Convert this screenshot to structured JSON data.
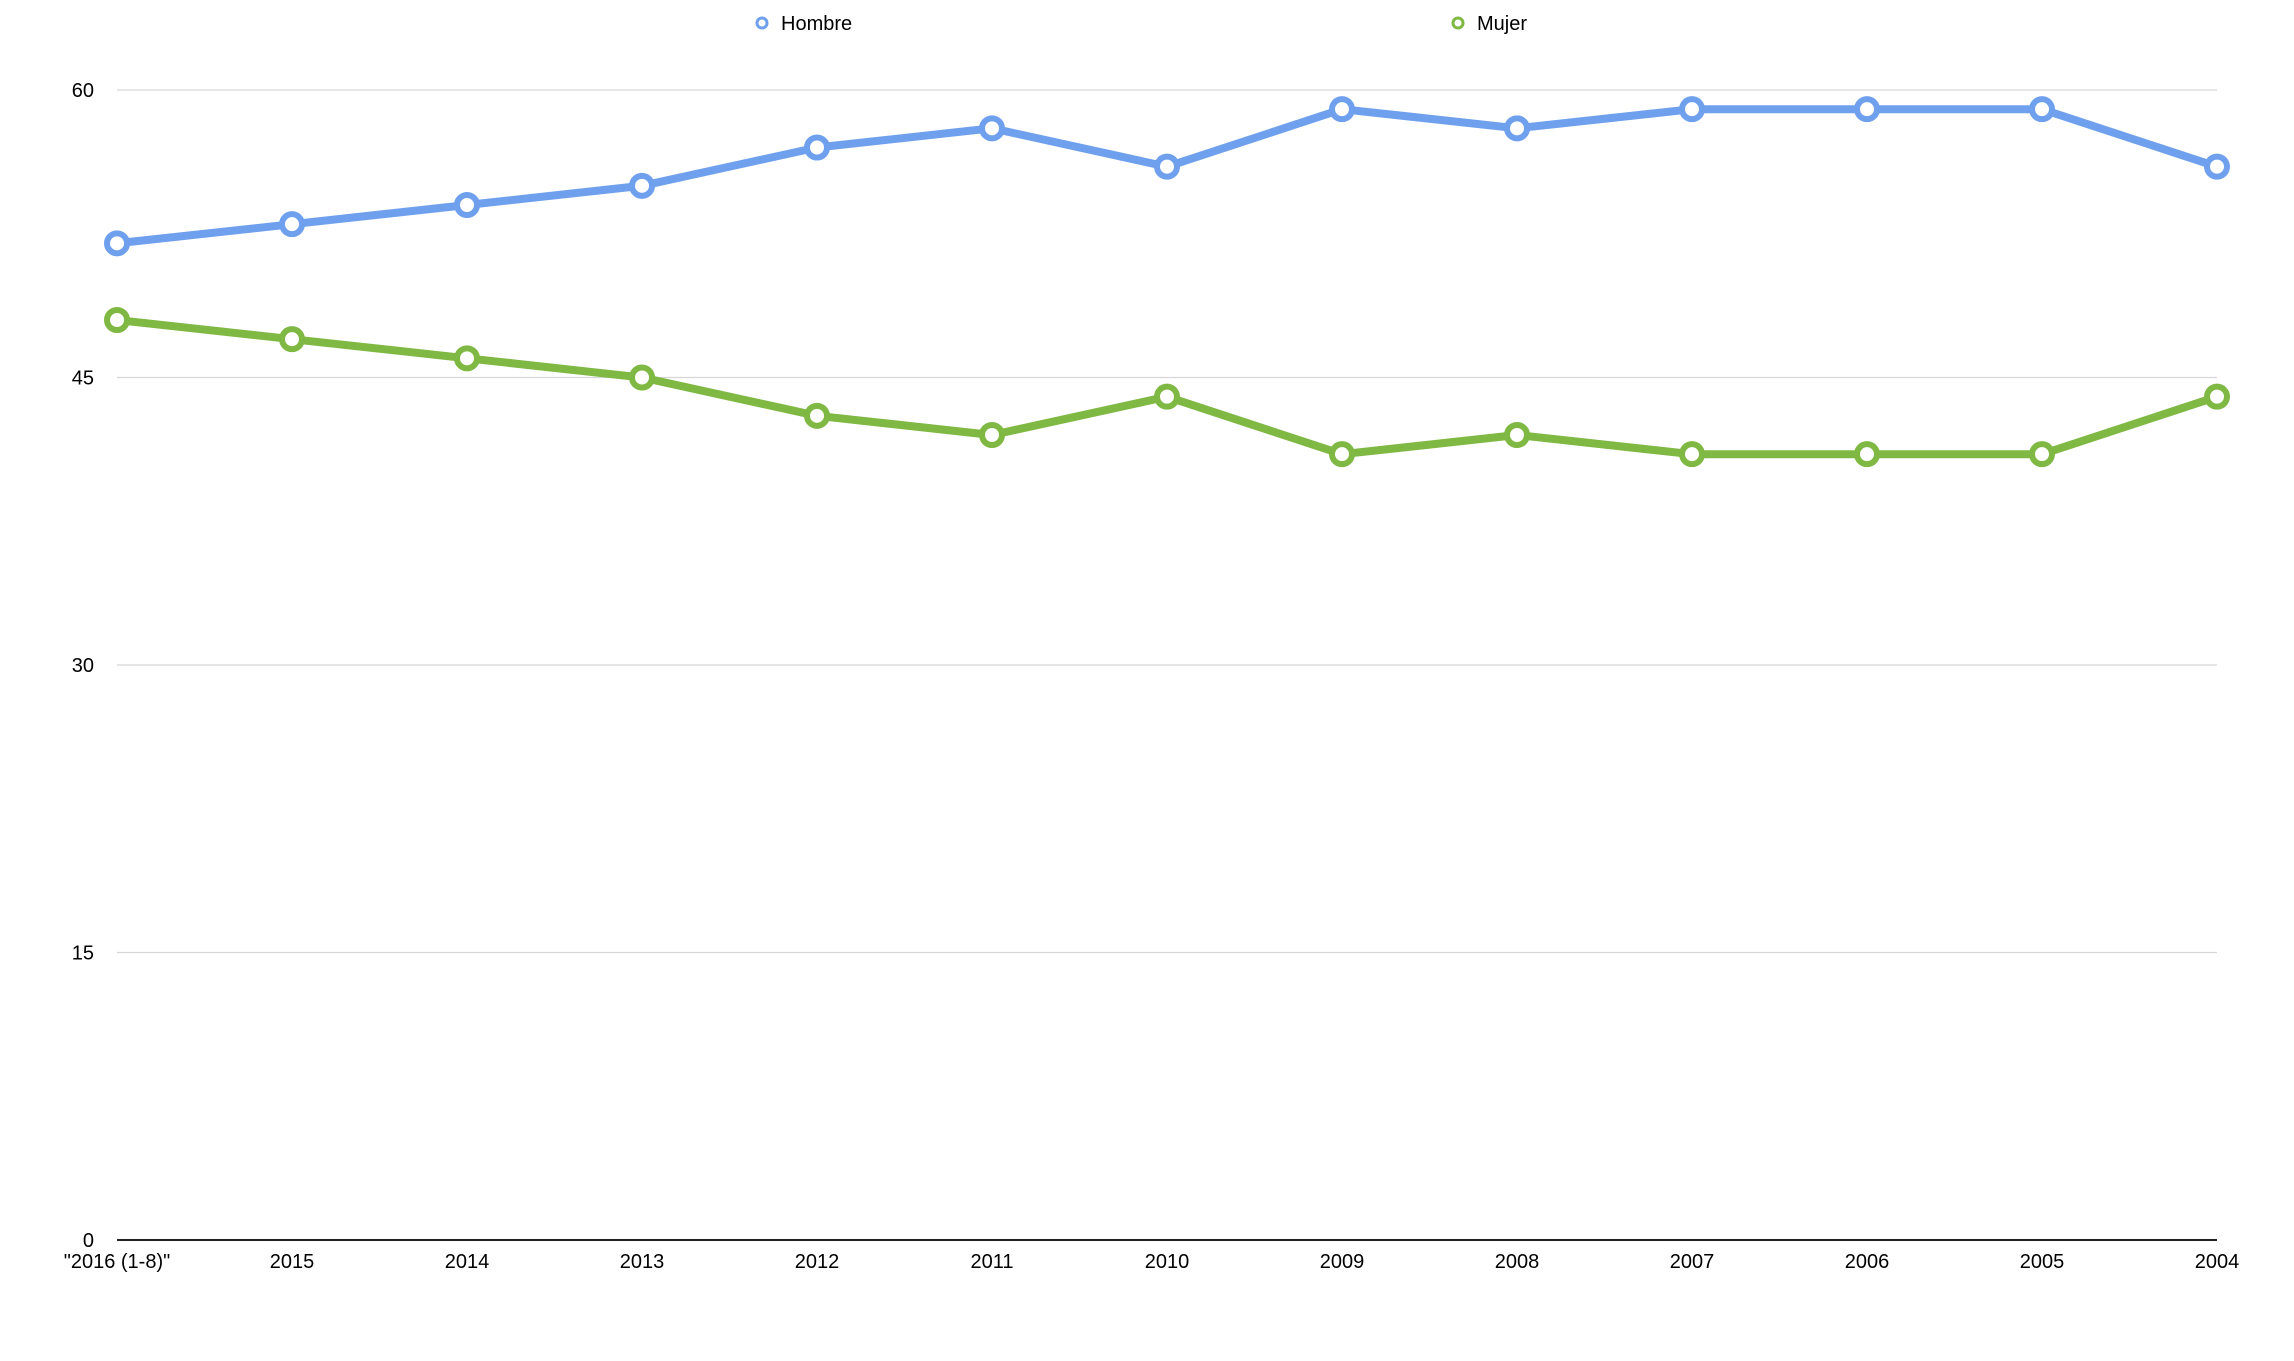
{
  "chart_data": {
    "type": "line",
    "categories": [
      "\"2016 (1-8)\"",
      "2015",
      "2014",
      "2013",
      "2012",
      "2011",
      "2010",
      "2009",
      "2008",
      "2007",
      "2006",
      "2005",
      "2004"
    ],
    "series": [
      {
        "name": "Hombre",
        "color": "#6fa0ee",
        "values": [
          52,
          53,
          54,
          55,
          57,
          58,
          56,
          59,
          58,
          59,
          59,
          59,
          56
        ]
      },
      {
        "name": "Mujer",
        "color": "#7fb842",
        "values": [
          48,
          47,
          46,
          45,
          43,
          42,
          44,
          41,
          42,
          41,
          41,
          41,
          44
        ]
      }
    ],
    "ylim": [
      0,
      60
    ],
    "yticks": [
      "0",
      "15",
      "30",
      "45",
      "60"
    ],
    "grid": true,
    "legend_position": "top-center"
  }
}
